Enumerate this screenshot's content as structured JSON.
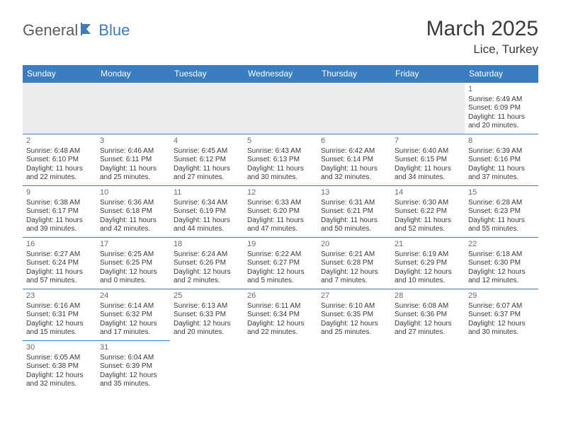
{
  "colors": {
    "brand_blue": "#3a7ec1",
    "header_bg": "#3a7ec1",
    "header_text": "#ffffff",
    "body_text": "#3a3a3a",
    "muted_text": "#6a6a6a",
    "row_divider": "#3a7ec1",
    "empty_bg": "#ececec",
    "page_bg": "#ffffff",
    "logo_gray": "#5c5c5c"
  },
  "logo": {
    "part1": "General",
    "part2": "Blue"
  },
  "title": "March 2025",
  "subtitle": "Lice, Turkey",
  "day_headers": [
    "Sunday",
    "Monday",
    "Tuesday",
    "Wednesday",
    "Thursday",
    "Friday",
    "Saturday"
  ],
  "weeks": [
    [
      null,
      null,
      null,
      null,
      null,
      null,
      {
        "n": "1",
        "sr": "Sunrise: 6:49 AM",
        "ss": "Sunset: 6:09 PM",
        "d1": "Daylight: 11 hours",
        "d2": "and 20 minutes."
      }
    ],
    [
      {
        "n": "2",
        "sr": "Sunrise: 6:48 AM",
        "ss": "Sunset: 6:10 PM",
        "d1": "Daylight: 11 hours",
        "d2": "and 22 minutes."
      },
      {
        "n": "3",
        "sr": "Sunrise: 6:46 AM",
        "ss": "Sunset: 6:11 PM",
        "d1": "Daylight: 11 hours",
        "d2": "and 25 minutes."
      },
      {
        "n": "4",
        "sr": "Sunrise: 6:45 AM",
        "ss": "Sunset: 6:12 PM",
        "d1": "Daylight: 11 hours",
        "d2": "and 27 minutes."
      },
      {
        "n": "5",
        "sr": "Sunrise: 6:43 AM",
        "ss": "Sunset: 6:13 PM",
        "d1": "Daylight: 11 hours",
        "d2": "and 30 minutes."
      },
      {
        "n": "6",
        "sr": "Sunrise: 6:42 AM",
        "ss": "Sunset: 6:14 PM",
        "d1": "Daylight: 11 hours",
        "d2": "and 32 minutes."
      },
      {
        "n": "7",
        "sr": "Sunrise: 6:40 AM",
        "ss": "Sunset: 6:15 PM",
        "d1": "Daylight: 11 hours",
        "d2": "and 34 minutes."
      },
      {
        "n": "8",
        "sr": "Sunrise: 6:39 AM",
        "ss": "Sunset: 6:16 PM",
        "d1": "Daylight: 11 hours",
        "d2": "and 37 minutes."
      }
    ],
    [
      {
        "n": "9",
        "sr": "Sunrise: 6:38 AM",
        "ss": "Sunset: 6:17 PM",
        "d1": "Daylight: 11 hours",
        "d2": "and 39 minutes."
      },
      {
        "n": "10",
        "sr": "Sunrise: 6:36 AM",
        "ss": "Sunset: 6:18 PM",
        "d1": "Daylight: 11 hours",
        "d2": "and 42 minutes."
      },
      {
        "n": "11",
        "sr": "Sunrise: 6:34 AM",
        "ss": "Sunset: 6:19 PM",
        "d1": "Daylight: 11 hours",
        "d2": "and 44 minutes."
      },
      {
        "n": "12",
        "sr": "Sunrise: 6:33 AM",
        "ss": "Sunset: 6:20 PM",
        "d1": "Daylight: 11 hours",
        "d2": "and 47 minutes."
      },
      {
        "n": "13",
        "sr": "Sunrise: 6:31 AM",
        "ss": "Sunset: 6:21 PM",
        "d1": "Daylight: 11 hours",
        "d2": "and 50 minutes."
      },
      {
        "n": "14",
        "sr": "Sunrise: 6:30 AM",
        "ss": "Sunset: 6:22 PM",
        "d1": "Daylight: 11 hours",
        "d2": "and 52 minutes."
      },
      {
        "n": "15",
        "sr": "Sunrise: 6:28 AM",
        "ss": "Sunset: 6:23 PM",
        "d1": "Daylight: 11 hours",
        "d2": "and 55 minutes."
      }
    ],
    [
      {
        "n": "16",
        "sr": "Sunrise: 6:27 AM",
        "ss": "Sunset: 6:24 PM",
        "d1": "Daylight: 11 hours",
        "d2": "and 57 minutes."
      },
      {
        "n": "17",
        "sr": "Sunrise: 6:25 AM",
        "ss": "Sunset: 6:25 PM",
        "d1": "Daylight: 12 hours",
        "d2": "and 0 minutes."
      },
      {
        "n": "18",
        "sr": "Sunrise: 6:24 AM",
        "ss": "Sunset: 6:26 PM",
        "d1": "Daylight: 12 hours",
        "d2": "and 2 minutes."
      },
      {
        "n": "19",
        "sr": "Sunrise: 6:22 AM",
        "ss": "Sunset: 6:27 PM",
        "d1": "Daylight: 12 hours",
        "d2": "and 5 minutes."
      },
      {
        "n": "20",
        "sr": "Sunrise: 6:21 AM",
        "ss": "Sunset: 6:28 PM",
        "d1": "Daylight: 12 hours",
        "d2": "and 7 minutes."
      },
      {
        "n": "21",
        "sr": "Sunrise: 6:19 AM",
        "ss": "Sunset: 6:29 PM",
        "d1": "Daylight: 12 hours",
        "d2": "and 10 minutes."
      },
      {
        "n": "22",
        "sr": "Sunrise: 6:18 AM",
        "ss": "Sunset: 6:30 PM",
        "d1": "Daylight: 12 hours",
        "d2": "and 12 minutes."
      }
    ],
    [
      {
        "n": "23",
        "sr": "Sunrise: 6:16 AM",
        "ss": "Sunset: 6:31 PM",
        "d1": "Daylight: 12 hours",
        "d2": "and 15 minutes."
      },
      {
        "n": "24",
        "sr": "Sunrise: 6:14 AM",
        "ss": "Sunset: 6:32 PM",
        "d1": "Daylight: 12 hours",
        "d2": "and 17 minutes."
      },
      {
        "n": "25",
        "sr": "Sunrise: 6:13 AM",
        "ss": "Sunset: 6:33 PM",
        "d1": "Daylight: 12 hours",
        "d2": "and 20 minutes."
      },
      {
        "n": "26",
        "sr": "Sunrise: 6:11 AM",
        "ss": "Sunset: 6:34 PM",
        "d1": "Daylight: 12 hours",
        "d2": "and 22 minutes."
      },
      {
        "n": "27",
        "sr": "Sunrise: 6:10 AM",
        "ss": "Sunset: 6:35 PM",
        "d1": "Daylight: 12 hours",
        "d2": "and 25 minutes."
      },
      {
        "n": "28",
        "sr": "Sunrise: 6:08 AM",
        "ss": "Sunset: 6:36 PM",
        "d1": "Daylight: 12 hours",
        "d2": "and 27 minutes."
      },
      {
        "n": "29",
        "sr": "Sunrise: 6:07 AM",
        "ss": "Sunset: 6:37 PM",
        "d1": "Daylight: 12 hours",
        "d2": "and 30 minutes."
      }
    ],
    [
      {
        "n": "30",
        "sr": "Sunrise: 6:05 AM",
        "ss": "Sunset: 6:38 PM",
        "d1": "Daylight: 12 hours",
        "d2": "and 32 minutes."
      },
      {
        "n": "31",
        "sr": "Sunrise: 6:04 AM",
        "ss": "Sunset: 6:39 PM",
        "d1": "Daylight: 12 hours",
        "d2": "and 35 minutes."
      },
      null,
      null,
      null,
      null,
      null
    ]
  ]
}
